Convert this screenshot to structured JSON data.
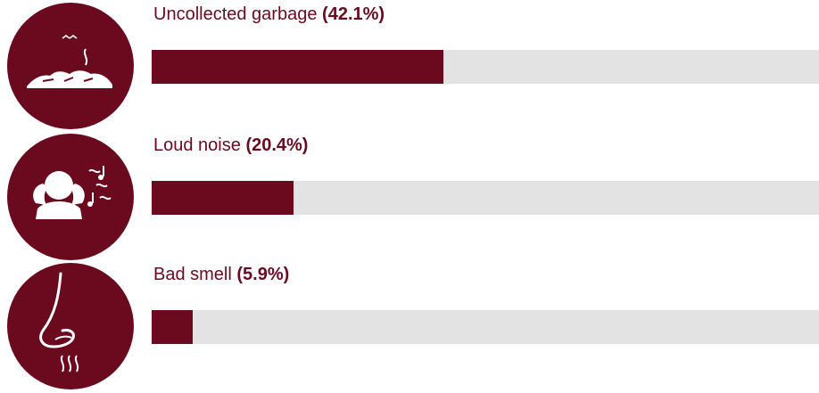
{
  "colors": {
    "accent": "#6b0a1f",
    "track": "#e3e3e3",
    "icon_fg": "#ffffff"
  },
  "chart_data": {
    "type": "bar",
    "orientation": "horizontal",
    "categories": [
      "Uncollected garbage",
      "Loud noise",
      "Bad smell"
    ],
    "values": [
      42.1,
      20.4,
      5.9
    ],
    "value_labels": [
      "(42.1%)",
      "(20.4%)",
      "(5.9%)"
    ],
    "icons": [
      "garbage-pile-icon",
      "covering-ears-icon",
      "nose-smell-icon"
    ],
    "xlim": [
      0,
      96.2
    ],
    "title": "",
    "xlabel": "",
    "ylabel": ""
  }
}
